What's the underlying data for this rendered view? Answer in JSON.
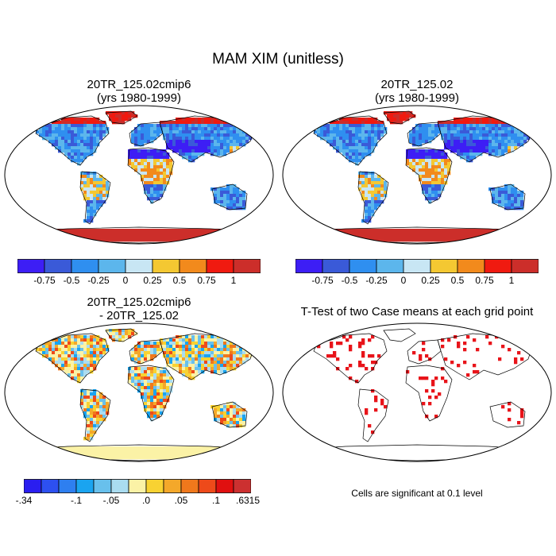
{
  "main_title": "MAM XIM (unitless)",
  "panels": [
    {
      "id": "p1",
      "title_line1": "20TR_125.02cmip6",
      "title_line2": "(yrs 1980-1999)",
      "type": "field"
    },
    {
      "id": "p2",
      "title_line1": "20TR_125.02",
      "title_line2": "(yrs 1980-1999)",
      "type": "field"
    },
    {
      "id": "p3",
      "title_line1": "20TR_125.02cmip6",
      "title_line2": "- 20TR_125.02",
      "type": "difference"
    },
    {
      "id": "p4",
      "title_line1": "T-Test of two Case means at each grid point",
      "title_line2": "",
      "type": "ttest"
    }
  ],
  "colorbar_field": {
    "colors": [
      "#3d1ef5",
      "#3a5ad8",
      "#2f8ff0",
      "#5cb6ec",
      "#c8e6f4",
      "#f4c832",
      "#f28a1c",
      "#f01a10",
      "#cc2e2a"
    ],
    "ticks": [
      "-0.75",
      "-0.5",
      "-0.25",
      "0",
      "0.25",
      "0.5",
      "0.75",
      "1"
    ]
  },
  "colorbar_diff": {
    "colors": [
      "#2a1ef0",
      "#2d50f0",
      "#2e7ff0",
      "#1aa4f0",
      "#68c0ec",
      "#aadcf0",
      "#fbf2a6",
      "#f8d232",
      "#f4a82a",
      "#f0781c",
      "#ee4a1a",
      "#e01010",
      "#cc3030"
    ],
    "ticks": [
      "-.34",
      "-.1",
      "-.05",
      ".0",
      ".05",
      ".1",
      ".6315"
    ]
  },
  "ttest_note": "Cells are significant at 0.1 level",
  "colors": {
    "ocean": "#ffffff",
    "land_outline": "#000000",
    "signif": "#e8141a"
  }
}
